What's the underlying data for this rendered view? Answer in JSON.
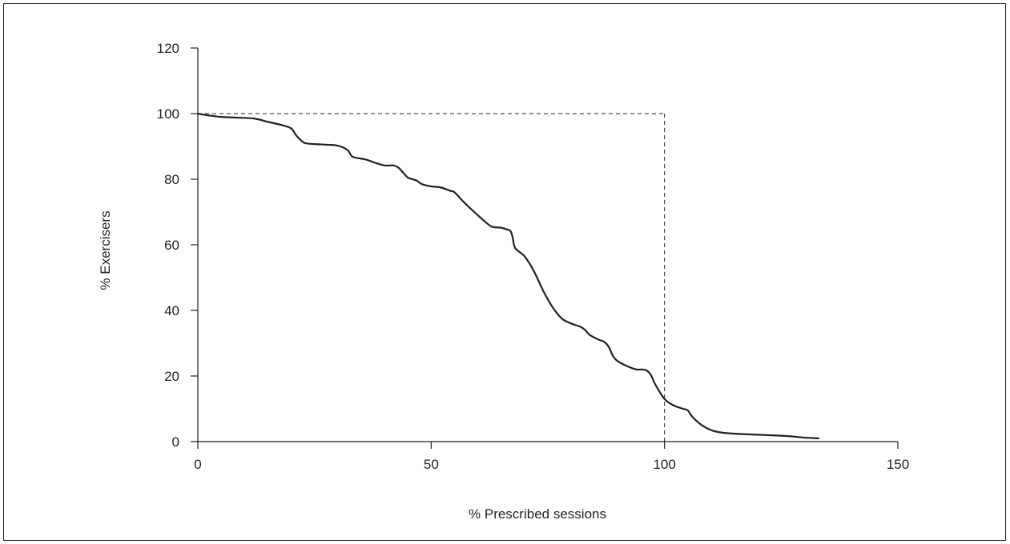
{
  "chart_data": {
    "type": "line",
    "title": "",
    "xlabel": "% Prescribed sessions",
    "ylabel": "% Exercisers",
    "xlim": [
      0,
      150
    ],
    "ylim": [
      0,
      120
    ],
    "x_ticks": [
      0,
      50,
      100,
      150
    ],
    "y_ticks": [
      0,
      20,
      40,
      60,
      80,
      100,
      120
    ],
    "grid": false,
    "legend": "none",
    "reference_lines": {
      "style": "dashed",
      "horizontal_y": 100,
      "vertical_x": 100
    },
    "series": [
      {
        "x": [
          0,
          2,
          5,
          8,
          12,
          15,
          18,
          20,
          21,
          22,
          23,
          25,
          28,
          30,
          32,
          33,
          34,
          36,
          38,
          40,
          42,
          43,
          44,
          45,
          46,
          47,
          48,
          50,
          52,
          54,
          55,
          57,
          60,
          62,
          63,
          64,
          65,
          66,
          67,
          67.5,
          68,
          70,
          72,
          74,
          76,
          78,
          80,
          82,
          83,
          84,
          86,
          87,
          88,
          89,
          90,
          92,
          94,
          95,
          96,
          97,
          98,
          100,
          102,
          104,
          105,
          106,
          108,
          110,
          112,
          115,
          120,
          125,
          128,
          130,
          133
        ],
        "y": [
          100,
          99.5,
          99,
          98.8,
          98.5,
          97.5,
          96.5,
          95.5,
          93.5,
          92,
          91,
          90.7,
          90.5,
          90.2,
          89,
          87,
          86.5,
          86,
          85,
          84.2,
          84.2,
          83.5,
          82,
          80.5,
          80,
          79.5,
          78.5,
          77.8,
          77.5,
          76.5,
          76,
          73,
          69,
          66.5,
          65.5,
          65.3,
          65.2,
          64.8,
          64.2,
          62,
          59,
          56.5,
          52,
          46,
          41,
          37.5,
          36,
          35,
          34,
          32.5,
          31,
          30.5,
          29,
          26,
          24.5,
          23,
          22,
          22,
          21.8,
          20.5,
          17.5,
          13,
          11,
          10,
          9.5,
          7.5,
          5,
          3.5,
          2.8,
          2.4,
          2.1,
          1.8,
          1.5,
          1.2,
          1
        ]
      }
    ]
  }
}
